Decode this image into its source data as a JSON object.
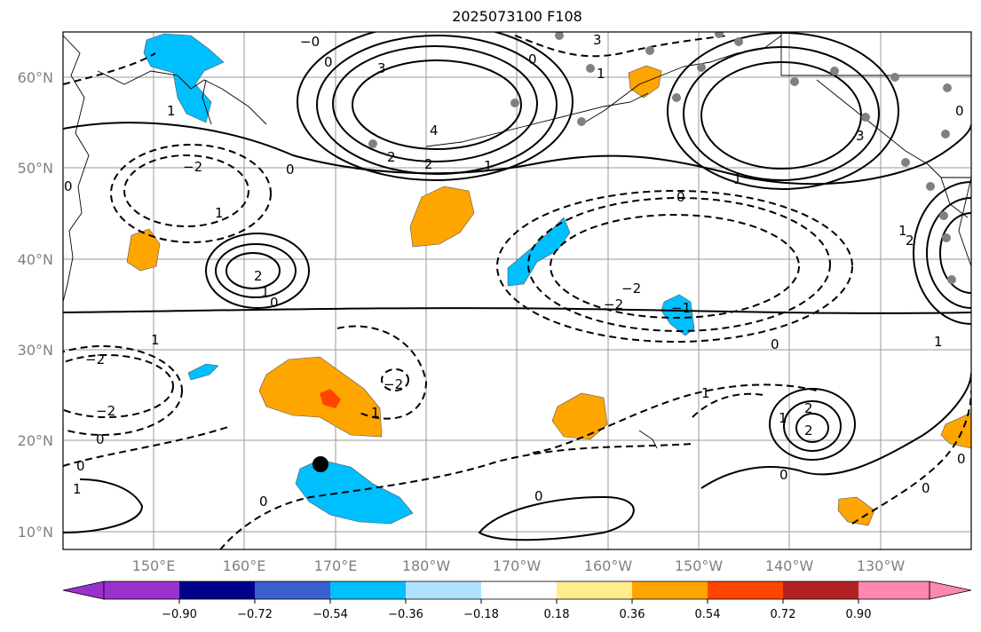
{
  "title": "2025073100 F108",
  "lat_labels": [
    "60°N",
    "50°N",
    "40°N",
    "30°N",
    "20°N",
    "10°N"
  ],
  "lon_labels": [
    "150°E",
    "160°E",
    "170°E",
    "180°W",
    "170°W",
    "160°W",
    "150°W",
    "140°W",
    "130°W"
  ],
  "colorbar": {
    "ticks": [
      "−0.90",
      "−0.72",
      "−0.54",
      "−0.36",
      "−0.18",
      "0.18",
      "0.36",
      "0.54",
      "0.72",
      "0.90"
    ],
    "colors": [
      "#9932cc",
      "#00008b",
      "#3a5fcd",
      "#00bfff",
      "#b0e2ff",
      "#ffffff",
      "#ffec8b",
      "#ffa500",
      "#ff4500",
      "#b22222",
      "#ff88b0"
    ]
  },
  "contour_labels": [
    "0",
    "1",
    "2",
    "3",
    "4",
    "−0",
    "−1",
    "−2"
  ],
  "storm_marker": "black-dot"
}
